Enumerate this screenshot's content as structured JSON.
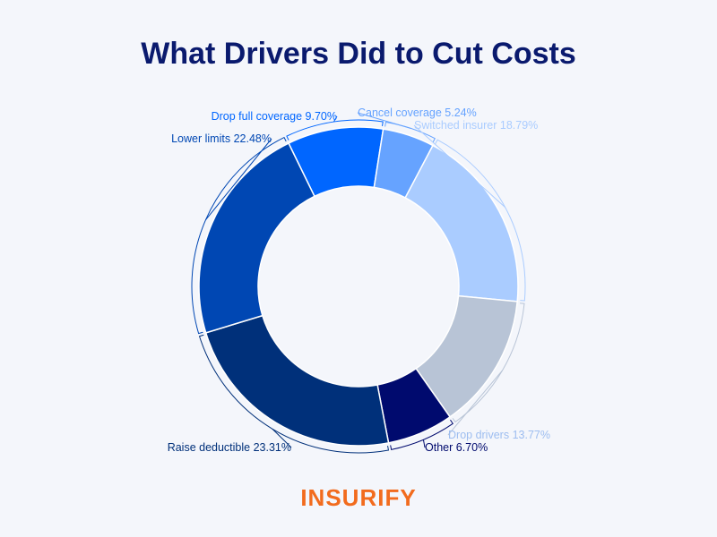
{
  "chart_data": {
    "type": "donut",
    "title": "What Drivers Did to Cut Costs",
    "categories": [
      "Drop full coverage",
      "Cancel coverage",
      "Switched insurer",
      "Drop drivers",
      "Other",
      "Raise deductible",
      "Lower limits"
    ],
    "values": [
      9.7,
      5.24,
      18.79,
      13.77,
      6.7,
      23.31,
      22.48
    ],
    "value_labels": [
      "9.70%",
      "5.24%",
      "18.79%",
      "13.77%",
      "6.70%",
      "23.31%",
      "22.48%"
    ],
    "colors": [
      "#0066ff",
      "#66a3ff",
      "#aaccff",
      "#b8c4d6",
      "#000a6e",
      "#00307a",
      "#0047b3"
    ],
    "logo": "INSURIFY"
  }
}
